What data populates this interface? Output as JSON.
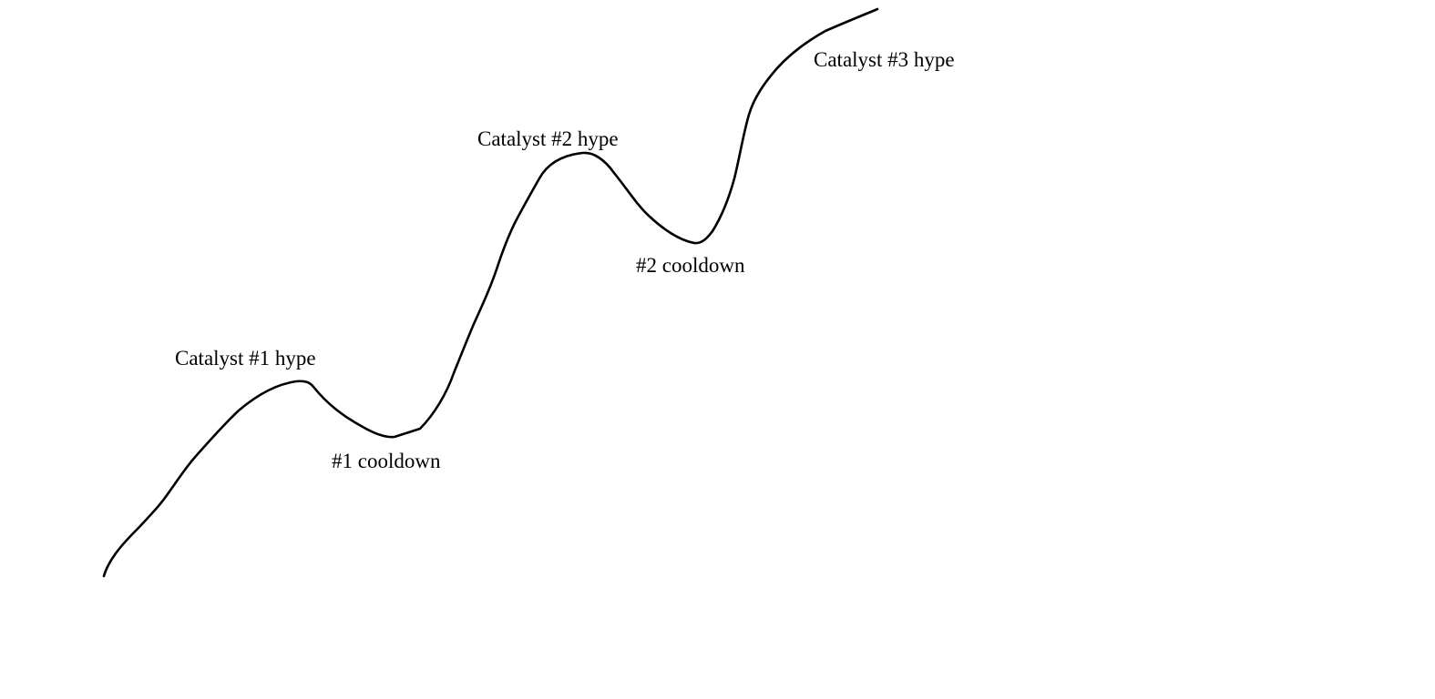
{
  "diagram": {
    "line_color": "#000000",
    "background_color": "#ffffff",
    "labels": {
      "catalyst_1": "Catalyst #1 hype",
      "cooldown_1": "#1 cooldown",
      "catalyst_2": "Catalyst #2 hype",
      "cooldown_2": "#2 cooldown",
      "catalyst_3": "Catalyst #3 hype"
    }
  }
}
